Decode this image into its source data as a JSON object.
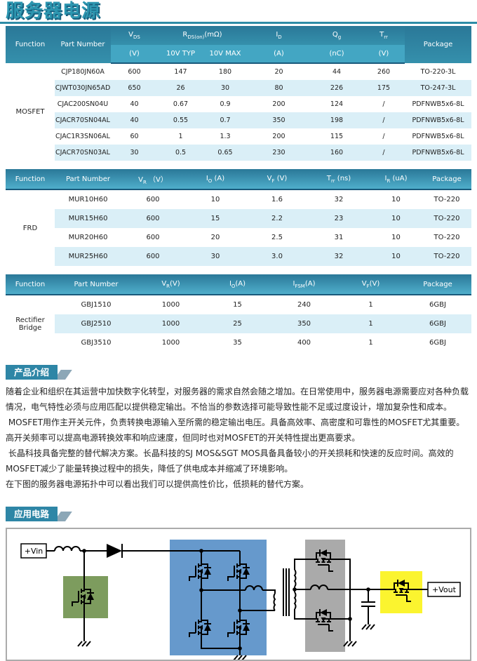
{
  "page_title": "服务器电源",
  "colors": {
    "title": "#2C96B0",
    "rule": "#2E8CA6",
    "header_dark": "#2A7898",
    "header_light": "#43A6C3",
    "stripe": "#DAEFF7",
    "badge_bg": "#2E86A6",
    "badge_tail": "#8CA7B7"
  },
  "tables": {
    "mosfet": {
      "function_label": "MOSFET",
      "header": {
        "function": "Function",
        "part_number": "Part Number",
        "vds": {
          "main": "V",
          "sub": "DS",
          "unit": "(V)"
        },
        "rds": {
          "main": "R",
          "sub": "DS(on)",
          "after": "(mΩ)"
        },
        "typ": "10V TYP",
        "max": "10V MAX",
        "id": {
          "main": "I",
          "sub": "D",
          "unit": "(A)"
        },
        "qg": {
          "main": "Q",
          "sub": "g",
          "unit": "(nC)"
        },
        "trr": {
          "main": "T",
          "sub": "rr",
          "unit": "(V)"
        },
        "package": "Package"
      },
      "rows": [
        [
          "CJP180JN60A",
          "600",
          "147",
          "180",
          "20",
          "44",
          "260",
          "TO-220-3L"
        ],
        [
          "CJWT030JN65AD",
          "650",
          "26",
          "30",
          "80",
          "226",
          "175",
          "TO-247-3L"
        ],
        [
          "CJAC200SN04U",
          "40",
          "0.67",
          "0.9",
          "200",
          "124",
          "/",
          "PDFNWB5x6-8L"
        ],
        [
          "CJACR70SN04AL",
          "40",
          "0.55",
          "0.7",
          "350",
          "198",
          "/",
          "PDFNWB5x6-8L"
        ],
        [
          "CJAC1R3SN06AL",
          "60",
          "1",
          "1.3",
          "200",
          "115",
          "/",
          "PDFNWB5x6-8L"
        ],
        [
          "CJACR70SN03AL",
          "30",
          "0.5",
          "0.65",
          "230",
          "160",
          "/",
          "PDFNWB5x6-8L"
        ]
      ]
    },
    "frd": {
      "function_label": "FRD",
      "header": {
        "function": "Function",
        "part_number": "Part Number",
        "vr": {
          "main": "V",
          "sub": "R",
          "after": " （V）"
        },
        "io": {
          "main": "I",
          "sub": "O",
          "after": " (A)"
        },
        "vf": {
          "main": "V",
          "sub": "F",
          "after": " (V)"
        },
        "trr": {
          "main": "T",
          "sub": "rr",
          "after": " (ns)"
        },
        "ir": {
          "main": "I",
          "sub": "R",
          "after": " (uA)"
        },
        "package": "Package"
      },
      "rows": [
        [
          "MUR10H60",
          "600",
          "10",
          "1.6",
          "32",
          "10",
          "TO-220"
        ],
        [
          "MUR15H60",
          "600",
          "15",
          "2.2",
          "23",
          "10",
          "TO-220"
        ],
        [
          "MUR20H60",
          "600",
          "20",
          "2.5",
          "31",
          "10",
          "TO-220"
        ],
        [
          "MUR25H60",
          "600",
          "30",
          "3.0",
          "32",
          "10",
          "TO-220"
        ]
      ]
    },
    "bridge": {
      "function_label": "Rectifier Bridge",
      "header": {
        "function": "Function",
        "part_number": "Part Number",
        "vr": {
          "main": "V",
          "sub": "R",
          "after": "(V)"
        },
        "io": {
          "main": "I",
          "sub": "O",
          "after": "(A)"
        },
        "ifsm": {
          "main": "I",
          "sub": "FSM",
          "after": "(A)"
        },
        "vf": {
          "main": "V",
          "sub": "F",
          "after": "(V)"
        },
        "package": "Package"
      },
      "rows": [
        [
          "GBJ1510",
          "1000",
          "15",
          "240",
          "1",
          "6GBJ"
        ],
        [
          "GBJ2510",
          "1000",
          "25",
          "350",
          "1",
          "6GBJ"
        ],
        [
          "GBJ3510",
          "1000",
          "35",
          "400",
          "1",
          "6GBJ"
        ]
      ]
    }
  },
  "intro": {
    "badge": "产品介绍",
    "paragraphs": [
      "随着企业和组织在其运营中加快数字化转型，对服务器的需求自然会随之增加。在日常使用中，服务器电源需要应对各种负载情况，电气特性必须与应用匹配以提供稳定输出。不恰当的参数选择可能导致性能不足或过度设计，增加复杂性和成本。",
      " MOSFET用作主开关元件，负责转换电源输入至所需的稳定输出电压。具备高效率、高密度和可靠性的MOSFET尤其重要。高开关频率可以提高电源转换效率和响应速度，但同时也对MOSFET的开关特性提出更高要求。",
      " 长晶科技具备完整的替代解决方案。长晶科技的SJ MOS&SGT MOS具备具备较小的开关损耗和快速的反应时间。高效的MOSFET减少了能量转换过程中的损失，降低了供电成本并缩减了环境影响。",
      "在下图的服务器电源拓扑中可以看出我们可以提供高性价比，低损耗的替代方案。"
    ]
  },
  "circuit": {
    "badge": "应用电路",
    "vin_label": "+Vin",
    "vout_label": "+Vout",
    "colors": {
      "pfc_box": "#7D9C5E",
      "bridge_box": "#6699CC",
      "sync_box": "#AAAAAA",
      "oring_box": "#FBF42F"
    }
  }
}
